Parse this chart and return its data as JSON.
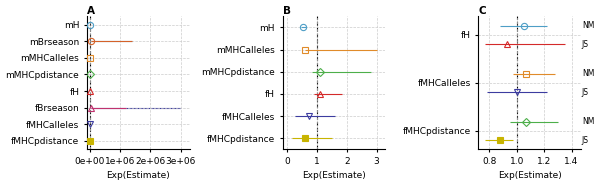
{
  "panel_A": {
    "title": "A",
    "xlabel": "Exp(Estimate)",
    "xlim": [
      -100000,
      3300000
    ],
    "xticks": [
      0,
      1000000,
      2000000,
      3000000
    ],
    "xticklabels": [
      "0e+00",
      "1e+06",
      "2e+06",
      "3e+06"
    ],
    "vline": 0,
    "rows": [
      {
        "label": "mH",
        "est": 0,
        "lo": 0,
        "hi": 0,
        "color": "#4E9EC6",
        "marker": "o",
        "filled": false,
        "extra_lo": null,
        "extra_hi": null,
        "extra_color": null
      },
      {
        "label": "mBrseason",
        "est": 50000,
        "lo": 50000,
        "hi": 1400000,
        "color": "#D4622A",
        "marker": "o",
        "filled": false,
        "extra_lo": 50000,
        "extra_hi": 1400000,
        "extra_color": "#4E9EC6"
      },
      {
        "label": "mMHCalleles",
        "est": 0,
        "lo": 0,
        "hi": 0,
        "color": "#E08B2A",
        "marker": "s",
        "filled": false,
        "extra_lo": null,
        "extra_hi": null,
        "extra_color": null
      },
      {
        "label": "mMHCpdistance",
        "est": 0,
        "lo": 0,
        "hi": 0,
        "color": "#4DAF4A",
        "marker": "D",
        "filled": false,
        "extra_lo": null,
        "extra_hi": null,
        "extra_color": null
      },
      {
        "label": "fH",
        "est": 0,
        "lo": 0,
        "hi": 0,
        "color": "#D42A2A",
        "marker": "^",
        "filled": false,
        "extra_lo": null,
        "extra_hi": null,
        "extra_color": null
      },
      {
        "label": "fBrseason",
        "est": 30000,
        "lo": 30000,
        "hi": 1200000,
        "color": "#C0326E",
        "marker": "^",
        "filled": false,
        "extra_lo": 30000,
        "extra_hi": 3000000,
        "extra_color": "#3C3CA0"
      },
      {
        "label": "fMHCalleles",
        "est": 0,
        "lo": 0,
        "hi": 0,
        "color": "#3C3CA0",
        "marker": "v",
        "filled": false,
        "extra_lo": null,
        "extra_hi": null,
        "extra_color": null
      },
      {
        "label": "fMHCpdistance",
        "est": 0,
        "lo": 0,
        "hi": 0,
        "color": "#C8B400",
        "marker": "s",
        "filled": true,
        "extra_lo": null,
        "extra_hi": null,
        "extra_color": null
      }
    ]
  },
  "panel_B": {
    "title": "B",
    "xlabel": "Exp(Estimate)",
    "xlim": [
      -0.15,
      3.3
    ],
    "xticks": [
      0,
      1,
      2,
      3
    ],
    "xticklabels": [
      "0",
      "1",
      "2",
      "3"
    ],
    "vline": 1,
    "rows": [
      {
        "label": "mH",
        "est": 0.55,
        "lo": 0.45,
        "hi": 0.65,
        "color": "#4E9EC6",
        "marker": "o",
        "filled": false
      },
      {
        "label": "mMHCalleles",
        "est": 0.6,
        "lo": 0.6,
        "hi": 3.0,
        "color": "#E08B2A",
        "marker": "s",
        "filled": false
      },
      {
        "label": "mMHCpdistance",
        "est": 1.1,
        "lo": 0.85,
        "hi": 2.8,
        "color": "#4DAF4A",
        "marker": "D",
        "filled": false
      },
      {
        "label": "fH",
        "est": 1.1,
        "lo": 0.9,
        "hi": 1.85,
        "color": "#D42A2A",
        "marker": "^",
        "filled": false
      },
      {
        "label": "fMHCalleles",
        "est": 0.72,
        "lo": 0.25,
        "hi": 1.6,
        "color": "#3C3CA0",
        "marker": "v",
        "filled": false
      },
      {
        "label": "fMHCpdistance",
        "est": 0.6,
        "lo": 0.18,
        "hi": 1.5,
        "color": "#C8B400",
        "marker": "s",
        "filled": true
      }
    ]
  },
  "panel_C": {
    "title": "C",
    "xlabel": "Exp(Estimate)",
    "xlim": [
      0.72,
      1.47
    ],
    "xticks": [
      0.8,
      1.0,
      1.2,
      1.4
    ],
    "xticklabels": [
      "0.8",
      "1.0",
      "1.2",
      "1.4"
    ],
    "vline": 1.0,
    "row_groups": [
      {
        "label": "fH",
        "rows": [
          {
            "tag": "NM",
            "est": 1.05,
            "lo": 0.88,
            "hi": 1.22,
            "color": "#4E9EC6",
            "marker": "o",
            "filled": false
          },
          {
            "tag": "JS",
            "est": 0.93,
            "lo": 0.77,
            "hi": 1.35,
            "color": "#D42A2A",
            "marker": "^",
            "filled": false
          }
        ]
      },
      {
        "label": "fMHCalleles",
        "rows": [
          {
            "tag": "NM",
            "est": 1.07,
            "lo": 0.97,
            "hi": 1.28,
            "color": "#E08B2A",
            "marker": "s",
            "filled": false
          },
          {
            "tag": "JS",
            "est": 1.0,
            "lo": 0.78,
            "hi": 1.22,
            "color": "#3C3CA0",
            "marker": "v",
            "filled": false
          }
        ]
      },
      {
        "label": "fMHCpdistance",
        "rows": [
          {
            "tag": "NM",
            "est": 1.07,
            "lo": 0.95,
            "hi": 1.3,
            "color": "#4DAF4A",
            "marker": "D",
            "filled": false
          },
          {
            "tag": "JS",
            "est": 0.88,
            "lo": 0.77,
            "hi": 0.97,
            "color": "#C8B400",
            "marker": "s",
            "filled": true
          }
        ]
      }
    ]
  },
  "background_color": "#ffffff",
  "grid_color": "#cccccc",
  "fontsize": 6.5,
  "marker_size": 4.5
}
